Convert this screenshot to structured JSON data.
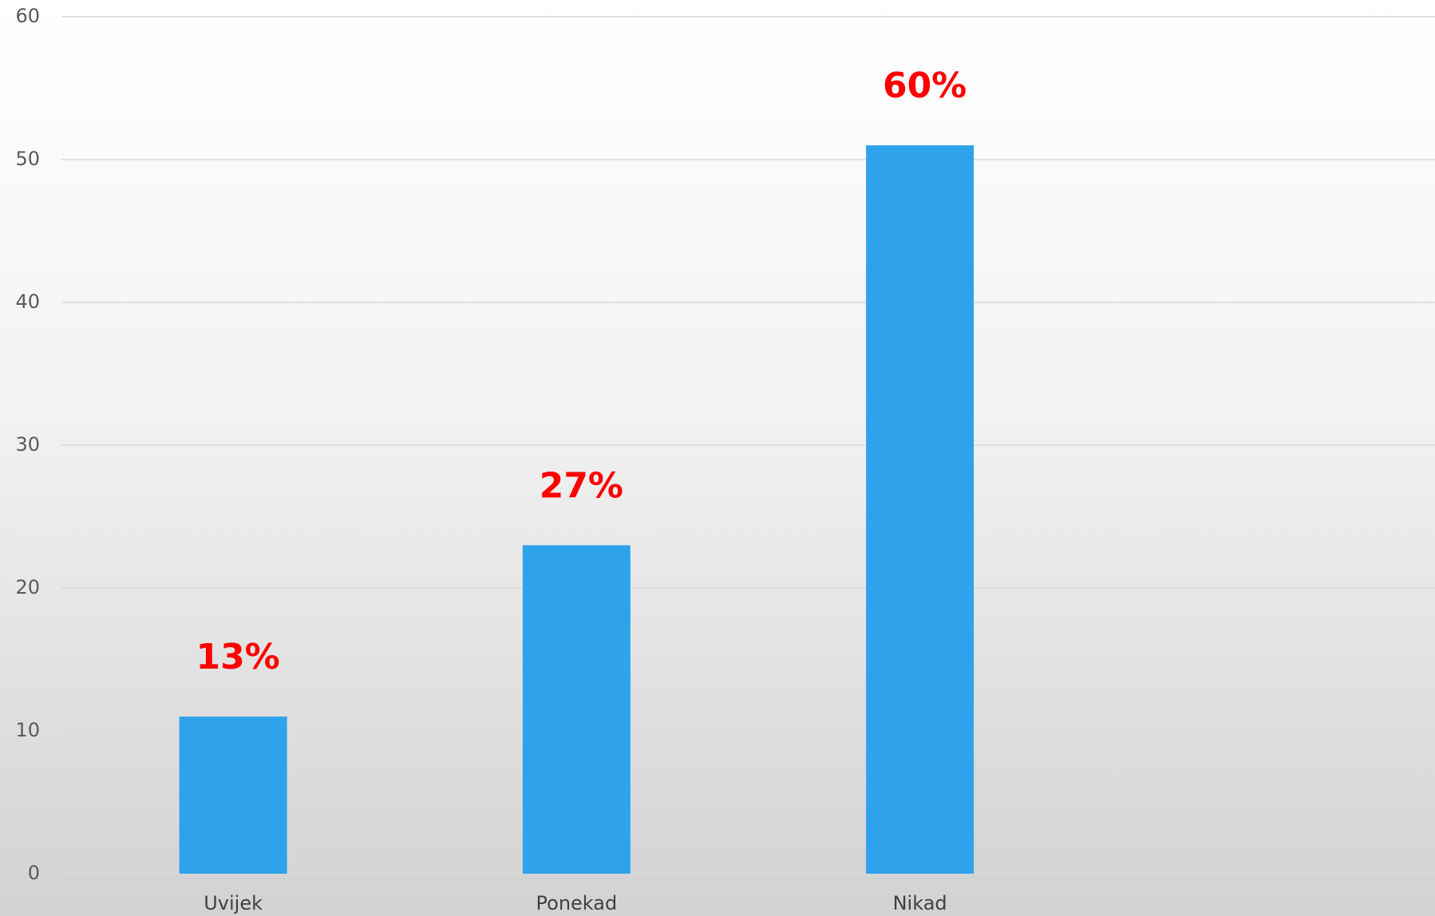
{
  "chart_data": {
    "type": "bar",
    "categories": [
      "Uvijek",
      "Ponekad",
      "Nikad",
      null
    ],
    "values": [
      11,
      23,
      51,
      null
    ],
    "annotations": [
      "13%",
      "27%",
      "60%"
    ],
    "color": "#2ea3ec",
    "ylim": [
      0,
      60
    ],
    "yticks": [
      0,
      10,
      20,
      30,
      40,
      50,
      60
    ],
    "grid": true
  }
}
